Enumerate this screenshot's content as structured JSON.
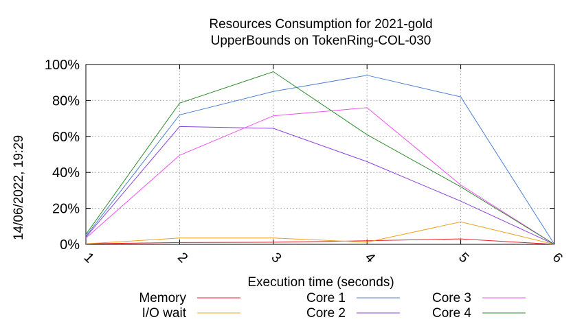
{
  "chart_data": {
    "type": "line",
    "title_line1": "Resources Consumption for 2021-gold",
    "title_line2": "UpperBounds on TokenRing-COL-030",
    "xlabel": "Execution time (seconds)",
    "ylabel": "",
    "timestamp": "14/06/2022, 19:29",
    "x": [
      1,
      2,
      3,
      4,
      5,
      6
    ],
    "x_tick_labels": [
      "1",
      "2",
      "3",
      "4",
      "5",
      "6"
    ],
    "xlim": [
      1,
      6
    ],
    "ylim": [
      0,
      100
    ],
    "y_ticks": [
      0,
      20,
      40,
      60,
      80,
      100
    ],
    "y_tick_labels": [
      "0%",
      "20%",
      "40%",
      "60%",
      "80%",
      "100%"
    ],
    "grid": true,
    "legend_position": "bottom",
    "series": [
      {
        "name": "Memory",
        "color": "#e8202a",
        "values": [
          0.3,
          1.0,
          1.2,
          2.0,
          3.0,
          0
        ]
      },
      {
        "name": "I/O wait",
        "color": "#f0a020",
        "values": [
          0.3,
          3.5,
          3.5,
          1.2,
          12.5,
          0
        ]
      },
      {
        "name": "Core 1",
        "color": "#4a7fd0",
        "values": [
          4.5,
          72,
          85,
          94,
          82,
          0
        ]
      },
      {
        "name": "Core 2",
        "color": "#8a40e0",
        "values": [
          4.0,
          65.5,
          64.5,
          46,
          24,
          0
        ]
      },
      {
        "name": "Core 3",
        "color": "#f050f0",
        "values": [
          3.5,
          49.5,
          71.5,
          76,
          33,
          0
        ]
      },
      {
        "name": "Core 4",
        "color": "#2e8b2e",
        "values": [
          5.5,
          78.5,
          96,
          61,
          32,
          0
        ]
      }
    ]
  }
}
